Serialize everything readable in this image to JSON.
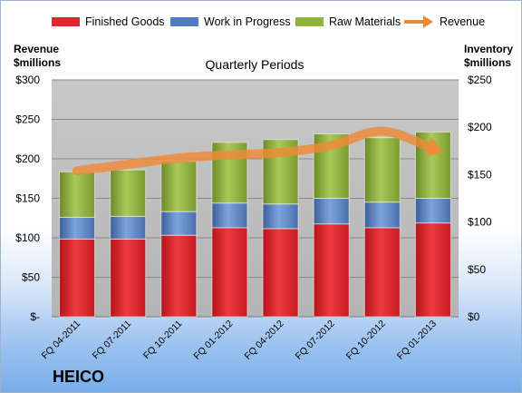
{
  "legend": [
    {
      "label": "Finished Goods",
      "color": "#e0262c",
      "kind": "swatch"
    },
    {
      "label": "Work in Progress",
      "color": "#4f7cc2",
      "kind": "swatch"
    },
    {
      "label": "Raw Materials",
      "color": "#8fb33c",
      "kind": "swatch"
    },
    {
      "label": "Revenue",
      "color": "#ee8a37",
      "kind": "arrow"
    }
  ],
  "left_axis_title": [
    "Revenue",
    "$millions"
  ],
  "right_axis_title": [
    "Inventory",
    "$millions"
  ],
  "brand": "HEICO",
  "chart_data": {
    "type": "bar",
    "stacked": true,
    "title": "Quarterly Periods",
    "categories": [
      "FQ 04-2011",
      "FQ 07-2011",
      "FQ 10-2011",
      "FQ 01-2012",
      "FQ 04-2012",
      "FQ 07-2012",
      "FQ 10-2012",
      "FQ 01-2013"
    ],
    "series": [
      {
        "name": "Finished Goods",
        "axis": "right",
        "color": "#e0262c",
        "values": [
          82,
          82,
          86,
          94,
          93,
          98,
          94,
          99
        ]
      },
      {
        "name": "Work in Progress",
        "axis": "right",
        "color": "#4f7cc2",
        "values": [
          23,
          24,
          25,
          26,
          26,
          27,
          27,
          26
        ]
      },
      {
        "name": "Raw Materials",
        "axis": "right",
        "color": "#8fb33c",
        "values": [
          48,
          49,
          53,
          64,
          68,
          68,
          68,
          70
        ]
      },
      {
        "name": "Revenue",
        "axis": "left",
        "type": "line",
        "color": "#ee8a37",
        "values": [
          185,
          193,
          201,
          205,
          208,
          217,
          235,
          213
        ]
      }
    ],
    "left_axis": {
      "min": 0,
      "max": 300,
      "step": 50,
      "tick_labels": [
        "$-",
        "$50",
        "$100",
        "$150",
        "$200",
        "$250",
        "$300"
      ]
    },
    "right_axis": {
      "min": 0,
      "max": 250,
      "step": 50,
      "tick_labels": [
        "$0",
        "$50",
        "$100",
        "$150",
        "$200",
        "$250"
      ]
    },
    "grid": true,
    "legend_position": "top"
  }
}
